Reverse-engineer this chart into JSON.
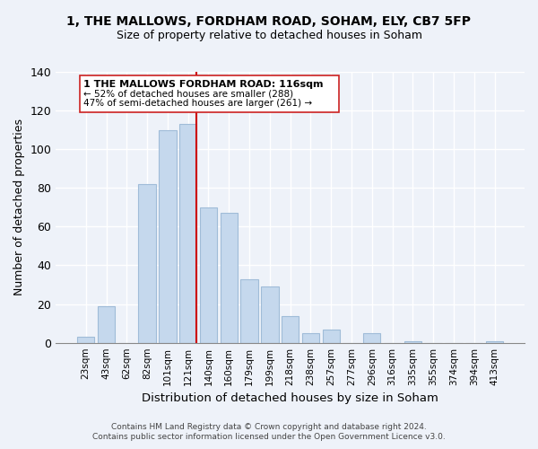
{
  "title": "1, THE MALLOWS, FORDHAM ROAD, SOHAM, ELY, CB7 5FP",
  "subtitle": "Size of property relative to detached houses in Soham",
  "xlabel": "Distribution of detached houses by size in Soham",
  "ylabel": "Number of detached properties",
  "categories": [
    "23sqm",
    "43sqm",
    "62sqm",
    "82sqm",
    "101sqm",
    "121sqm",
    "140sqm",
    "160sqm",
    "179sqm",
    "199sqm",
    "218sqm",
    "238sqm",
    "257sqm",
    "277sqm",
    "296sqm",
    "316sqm",
    "335sqm",
    "355sqm",
    "374sqm",
    "394sqm",
    "413sqm"
  ],
  "values": [
    3,
    19,
    0,
    82,
    110,
    113,
    70,
    67,
    33,
    29,
    14,
    5,
    7,
    0,
    5,
    0,
    1,
    0,
    0,
    0,
    1
  ],
  "bar_color": "#c5d8ed",
  "bar_edge_color": "#a0bcd8",
  "vline_color": "#cc0000",
  "ylim": [
    0,
    140
  ],
  "yticks": [
    0,
    20,
    40,
    60,
    80,
    100,
    120,
    140
  ],
  "annotation_box_text_lines": [
    "1 THE MALLOWS FORDHAM ROAD: 116sqm",
    "← 52% of detached houses are smaller (288)",
    "47% of semi-detached houses are larger (261) →"
  ],
  "footnote1": "Contains HM Land Registry data © Crown copyright and database right 2024.",
  "footnote2": "Contains public sector information licensed under the Open Government Licence v3.0.",
  "background_color": "#eef2f9",
  "grid_color": "#ffffff",
  "title_fontsize": 10,
  "subtitle_fontsize": 9
}
